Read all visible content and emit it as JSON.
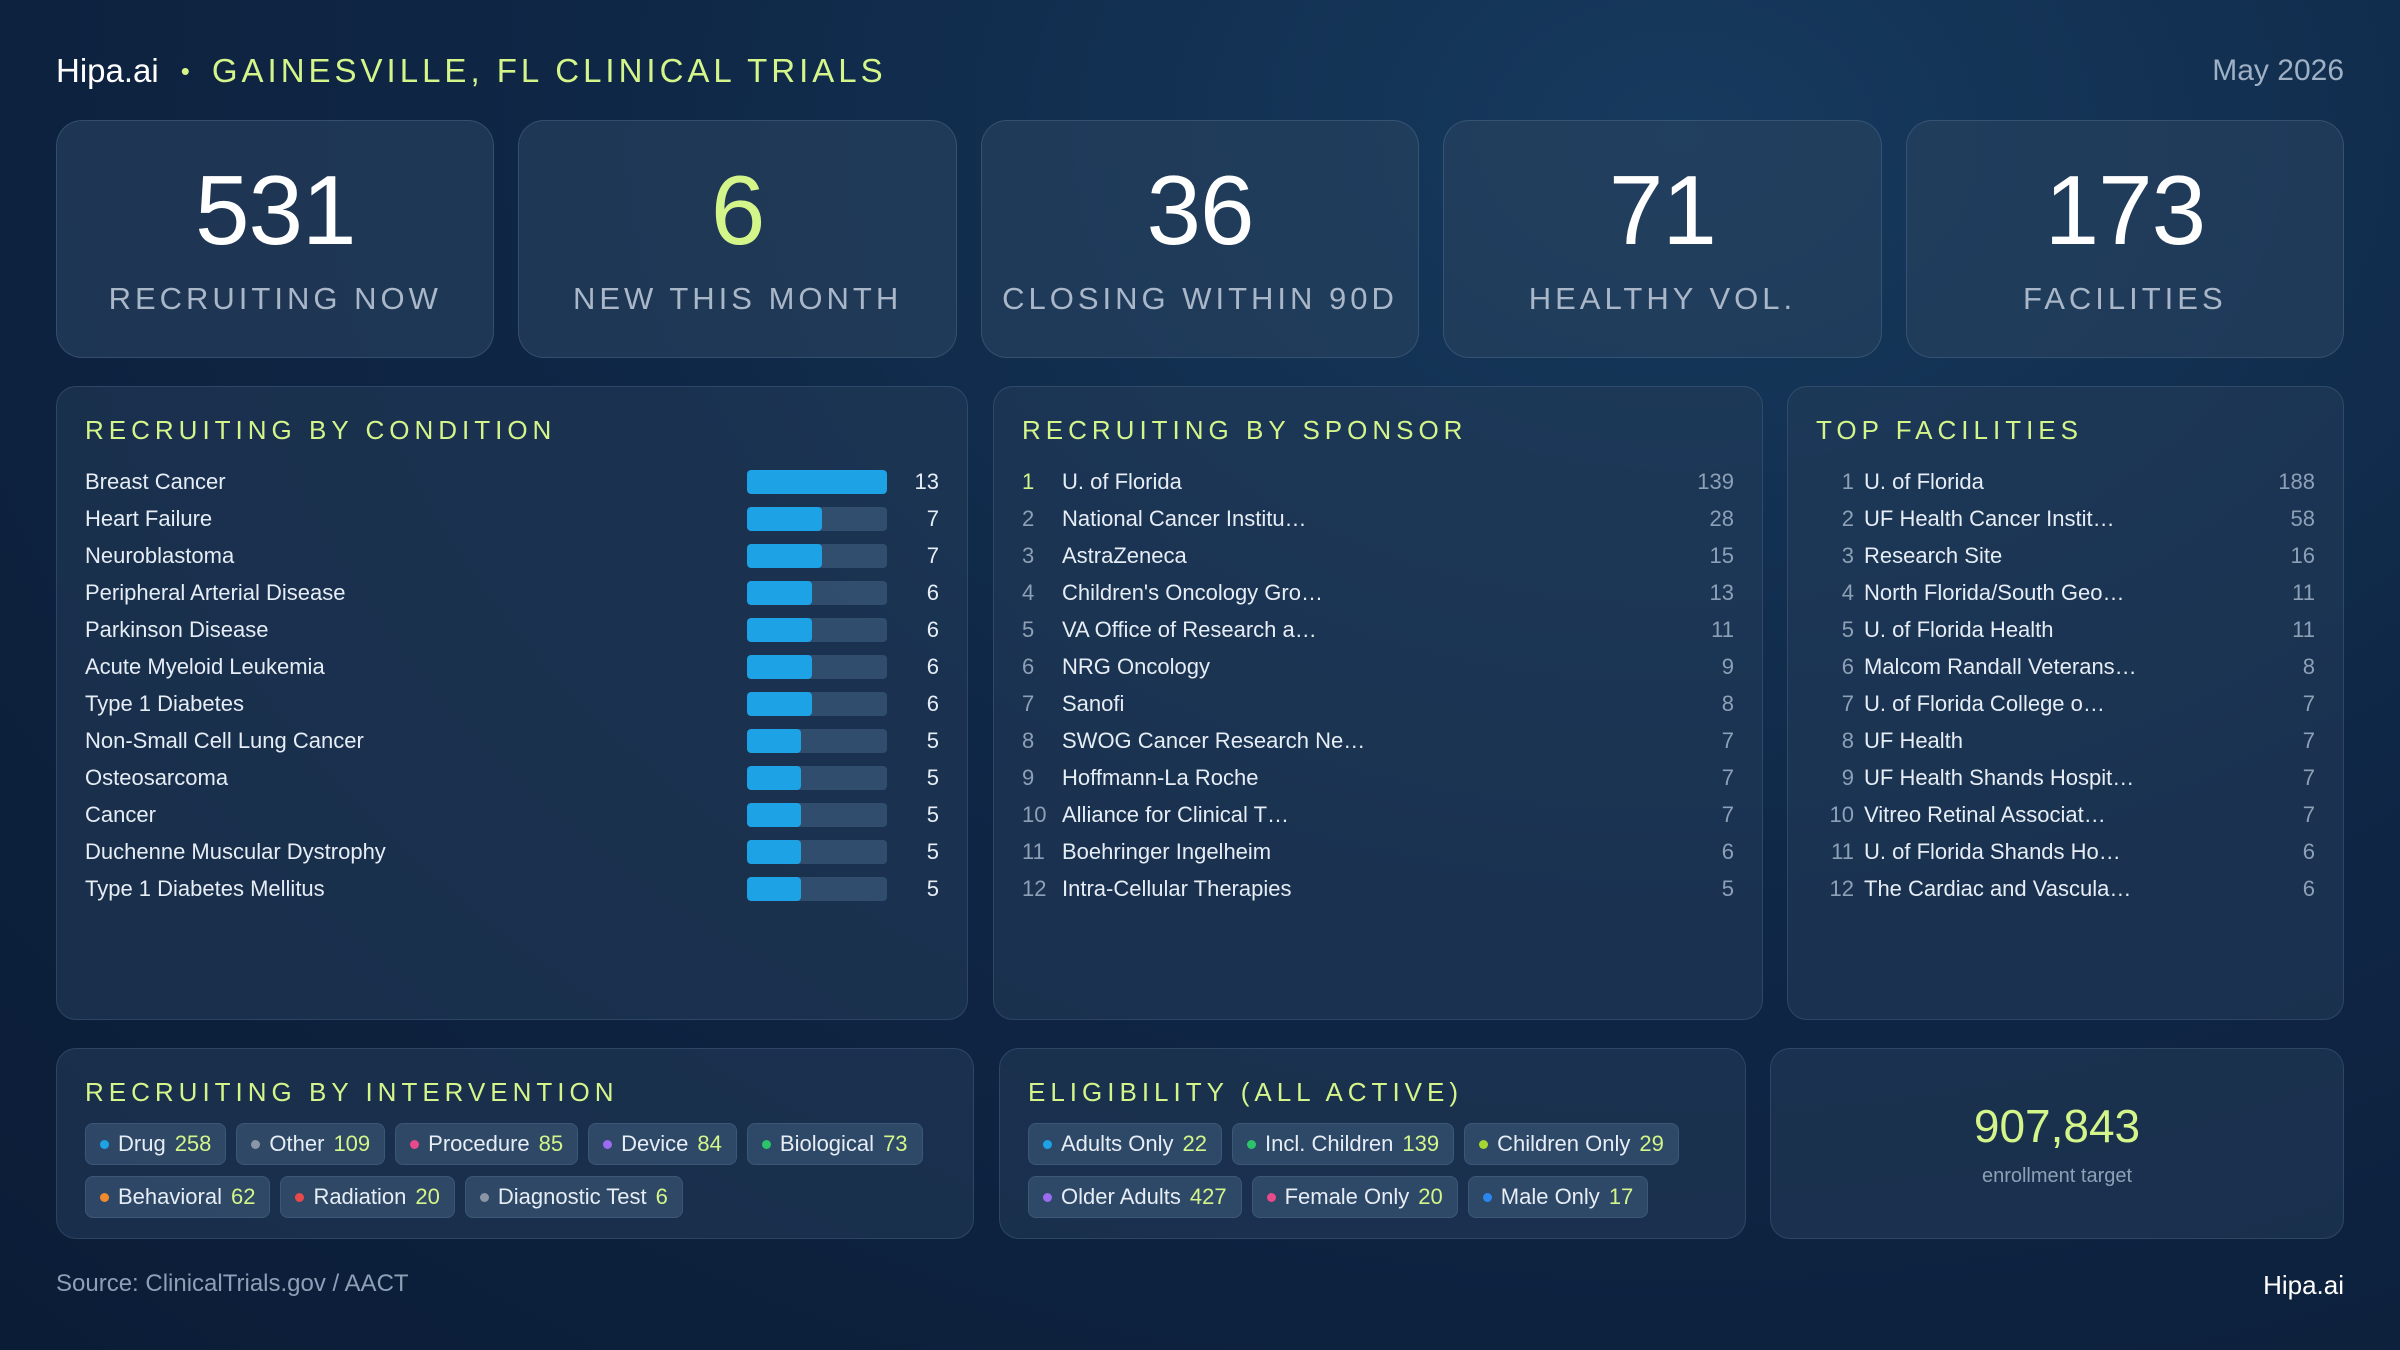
{
  "header": {
    "brand": "Hipa.ai",
    "separator": "•",
    "title": "GAINESVILLE, FL CLINICAL TRIALS",
    "date": "May 2026"
  },
  "kpis": [
    {
      "value": "531",
      "label": "RECRUITING NOW"
    },
    {
      "value": "6",
      "label": "NEW THIS MONTH"
    },
    {
      "value": "36",
      "label": "CLOSING WITHIN 90D"
    },
    {
      "value": "71",
      "label": "HEALTHY VOL."
    },
    {
      "value": "173",
      "label": "FACILITIES"
    }
  ],
  "conditions": {
    "title": "RECRUITING BY CONDITION",
    "max": 13,
    "items": [
      {
        "name": "Breast Cancer",
        "value": 13
      },
      {
        "name": "Heart Failure",
        "value": 7
      },
      {
        "name": "Neuroblastoma",
        "value": 7
      },
      {
        "name": "Peripheral Arterial Disease",
        "value": 6
      },
      {
        "name": "Parkinson Disease",
        "value": 6
      },
      {
        "name": "Acute Myeloid Leukemia",
        "value": 6
      },
      {
        "name": "Type 1 Diabetes",
        "value": 6
      },
      {
        "name": "Non-Small Cell Lung Cancer",
        "value": 5
      },
      {
        "name": "Osteosarcoma",
        "value": 5
      },
      {
        "name": "Cancer",
        "value": 5
      },
      {
        "name": "Duchenne Muscular Dystrophy",
        "value": 5
      },
      {
        "name": "Type 1 Diabetes Mellitus",
        "value": 5
      }
    ]
  },
  "sponsors": {
    "title": "RECRUITING BY SPONSOR",
    "items": [
      {
        "rank": "1",
        "name": "U. of Florida",
        "value": "139"
      },
      {
        "rank": "2",
        "name": "National Cancer Institu…",
        "value": "28"
      },
      {
        "rank": "3",
        "name": "AstraZeneca",
        "value": "15"
      },
      {
        "rank": "4",
        "name": "Children's Oncology Gro…",
        "value": "13"
      },
      {
        "rank": "5",
        "name": "VA Office of Research a…",
        "value": "11"
      },
      {
        "rank": "6",
        "name": "NRG Oncology",
        "value": "9"
      },
      {
        "rank": "7",
        "name": "Sanofi",
        "value": "8"
      },
      {
        "rank": "8",
        "name": "SWOG Cancer Research Ne…",
        "value": "7"
      },
      {
        "rank": "9",
        "name": "Hoffmann-La Roche",
        "value": "7"
      },
      {
        "rank": "10",
        "name": "Alliance for Clinical T…",
        "value": "7"
      },
      {
        "rank": "11",
        "name": "Boehringer Ingelheim",
        "value": "6"
      },
      {
        "rank": "12",
        "name": "Intra-Cellular Therapies",
        "value": "5"
      }
    ]
  },
  "facilities": {
    "title": "TOP FACILITIES",
    "items": [
      {
        "rank": "1",
        "name": "U. of Florida",
        "value": "188"
      },
      {
        "rank": "2",
        "name": "UF Health Cancer Instit…",
        "value": "58"
      },
      {
        "rank": "3",
        "name": "Research Site",
        "value": "16"
      },
      {
        "rank": "4",
        "name": "North Florida/South Geo…",
        "value": "11"
      },
      {
        "rank": "5",
        "name": "U. of Florida Health",
        "value": "11"
      },
      {
        "rank": "6",
        "name": "Malcom Randall Veterans…",
        "value": "8"
      },
      {
        "rank": "7",
        "name": "U. of Florida College o…",
        "value": "7"
      },
      {
        "rank": "8",
        "name": "UF Health",
        "value": "7"
      },
      {
        "rank": "9",
        "name": "UF Health Shands Hospit…",
        "value": "7"
      },
      {
        "rank": "10",
        "name": "Vitreo Retinal Associat…",
        "value": "7"
      },
      {
        "rank": "11",
        "name": "U. of Florida Shands Ho…",
        "value": "6"
      },
      {
        "rank": "12",
        "name": "The Cardiac and Vascula…",
        "value": "6"
      }
    ]
  },
  "interventions": {
    "title": "RECRUITING BY INTERVENTION",
    "items": [
      {
        "label": "Drug",
        "value": "258",
        "color": "#1ea2e6"
      },
      {
        "label": "Other",
        "value": "109",
        "color": "#8a96a6"
      },
      {
        "label": "Procedure",
        "value": "85",
        "color": "#e84a8a"
      },
      {
        "label": "Device",
        "value": "84",
        "color": "#9b6cf0"
      },
      {
        "label": "Biological",
        "value": "73",
        "color": "#2cc46a"
      },
      {
        "label": "Behavioral",
        "value": "62",
        "color": "#f08a2c"
      },
      {
        "label": "Radiation",
        "value": "20",
        "color": "#e84a4a"
      },
      {
        "label": "Diagnostic Test",
        "value": "6",
        "color": "#8a96a6"
      }
    ]
  },
  "eligibility": {
    "title": "ELIGIBILITY (ALL ACTIVE)",
    "items": [
      {
        "label": "Adults Only",
        "value": "22",
        "color": "#1ea2e6"
      },
      {
        "label": "Incl. Children",
        "value": "139",
        "color": "#2cc46a"
      },
      {
        "label": "Children Only",
        "value": "29",
        "color": "#a6d630"
      },
      {
        "label": "Older Adults",
        "value": "427",
        "color": "#9b6cf0"
      },
      {
        "label": "Female Only",
        "value": "20",
        "color": "#e84a8a"
      },
      {
        "label": "Male Only",
        "value": "17",
        "color": "#2c86f0"
      }
    ]
  },
  "enrollment": {
    "value": "907,843",
    "label": "enrollment target"
  },
  "footer": {
    "source": "Source: ClinicalTrials.gov / AACT",
    "brand": "Hipa.ai"
  }
}
